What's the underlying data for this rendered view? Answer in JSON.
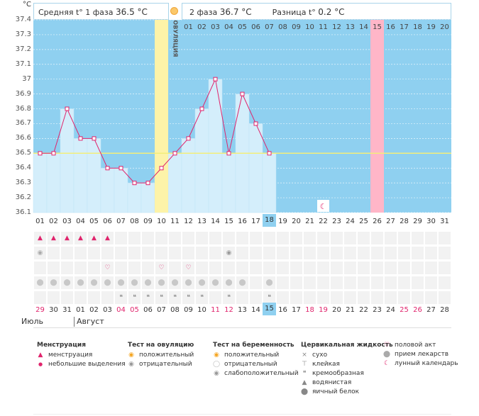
{
  "header": {
    "unit": "°C",
    "phase1_label": "Средняя t° 1 фаза",
    "phase1_value": "36.5 °C",
    "phase2_label": "2 фаза",
    "phase2_value": "36.7 °C",
    "diff_label": "Разница t°",
    "diff_value": "0.2 °C"
  },
  "ovulation_label": "ОВУЛЯЦИЯ",
  "colors": {
    "sky": "#8fd0f0",
    "bar": "#d4eefb",
    "ovulation": "#fdf3a8",
    "highlight": "#ffb6c8",
    "line": "#e0246c",
    "coverline": "#f3ee7a",
    "grid": "#e0e0e0"
  },
  "chart_data": {
    "type": "line",
    "ylim": [
      36.1,
      37.4
    ],
    "yticks": [
      "37.4",
      "37.3",
      "37.2",
      "37.1",
      "37",
      "36.9",
      "36.8",
      "36.7",
      "36.6",
      "36.5",
      "36.4",
      "36.3",
      "36.2",
      "36.1"
    ],
    "days": [
      "01",
      "02",
      "03",
      "04",
      "05",
      "06",
      "07",
      "08",
      "09",
      "10",
      "11",
      "12",
      "13",
      "14",
      "15",
      "16",
      "17",
      "18",
      "19",
      "20",
      "21",
      "22",
      "23",
      "24",
      "25",
      "26",
      "27",
      "28",
      "29",
      "30",
      "31"
    ],
    "temperatures": [
      36.5,
      36.5,
      36.8,
      36.6,
      36.6,
      36.4,
      36.4,
      36.3,
      36.3,
      36.4,
      36.5,
      36.6,
      36.8,
      37.0,
      36.5,
      36.9,
      36.7,
      36.5,
      null,
      null,
      null,
      null,
      null,
      null,
      null,
      null,
      null,
      null,
      null,
      null,
      null
    ],
    "coverline": 36.5,
    "ovulation_day": "11",
    "phase2_days": [
      "01",
      "02",
      "03",
      "04",
      "05",
      "06",
      "07",
      "08",
      "09",
      "10",
      "11",
      "12",
      "13",
      "14",
      "15",
      "16",
      "17",
      "18",
      "19",
      "20"
    ],
    "highlight_phase2_day": "15",
    "current_day": "18"
  },
  "calendar": {
    "dates": [
      "29",
      "30",
      "31",
      "01",
      "02",
      "03",
      "04",
      "05",
      "06",
      "07",
      "08",
      "09",
      "10",
      "11",
      "12",
      "13",
      "14",
      "15",
      "16",
      "17",
      "18",
      "19",
      "20",
      "21",
      "22",
      "23",
      "24",
      "25",
      "26",
      "27",
      "28"
    ],
    "red_dates": [
      "29",
      "04",
      "05",
      "11",
      "12",
      "18",
      "19",
      "25",
      "26"
    ],
    "today_date": "15",
    "month1": "Июль",
    "month2": "Август"
  },
  "markers": {
    "menstruation": [
      "1",
      "2",
      "3",
      "4",
      "5",
      "6"
    ],
    "ovulation_test_negative": [
      "1"
    ],
    "pregnancy_test_negative": [
      "15"
    ],
    "intercourse": [
      "6",
      "10",
      "12"
    ],
    "medication": [
      "1",
      "2",
      "3",
      "4",
      "5",
      "6",
      "7",
      "8",
      "9",
      "10",
      "11",
      "12",
      "13",
      "14",
      "15",
      "16",
      "18"
    ],
    "cervical": [
      "7",
      "8",
      "9",
      "10",
      "11",
      "12",
      "13",
      "15",
      "18"
    ],
    "lunar": "22"
  },
  "legend": {
    "menstruation": {
      "title": "Менструация",
      "items": [
        "менструация",
        "небольшие выделения"
      ]
    },
    "ovulation_test": {
      "title": "Тест на овуляцию",
      "items": [
        "положительный",
        "отрицательный"
      ]
    },
    "pregnancy_test": {
      "title": "Тест на беременность",
      "items": [
        "положительный",
        "отрицательный",
        "слабоположительный"
      ]
    },
    "cervical": {
      "title": "Цервикальная жидкость",
      "items": [
        "сухо",
        "клейкая",
        "кремообразная",
        "водянистая",
        "яичный белок"
      ]
    },
    "other": {
      "items": [
        "половой акт",
        "прием лекарств",
        "лунный календарь"
      ]
    }
  }
}
